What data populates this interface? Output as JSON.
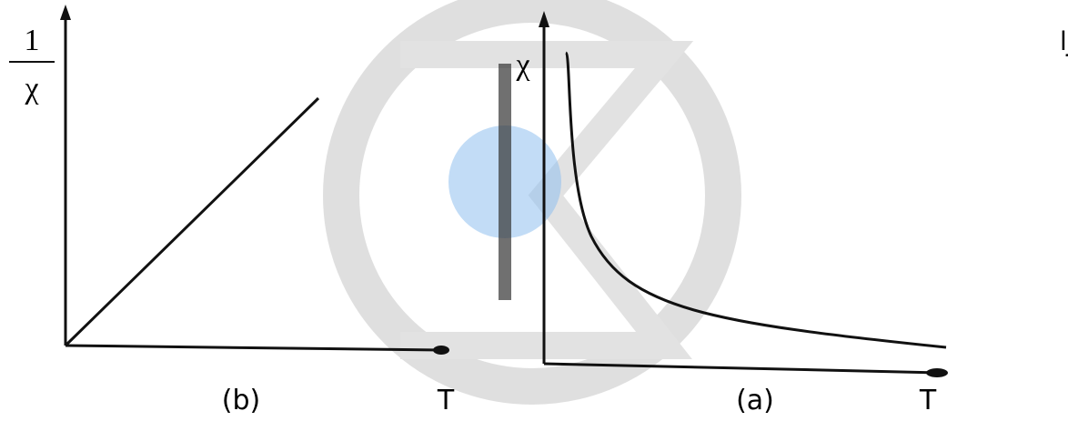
{
  "left_graph": {
    "y_label": {
      "numerator": "1",
      "denominator": "χ"
    },
    "x_label": "T",
    "caption": "(b)"
  },
  "right_graph": {
    "y_label": "χ",
    "x_label": "T",
    "caption": "(a)"
  },
  "side_text": "البارا"
}
